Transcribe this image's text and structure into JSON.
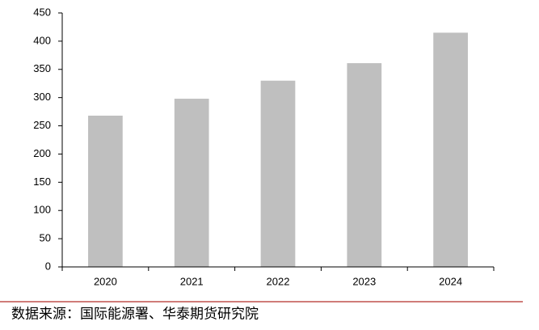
{
  "chart_data": {
    "type": "bar",
    "categories": [
      "2020",
      "2021",
      "2022",
      "2023",
      "2024"
    ],
    "values": [
      268,
      298,
      330,
      361,
      415
    ],
    "color": "#bfbfbf",
    "ylim": [
      0,
      450
    ],
    "yticks": [
      0,
      50,
      100,
      150,
      200,
      250,
      300,
      350,
      400,
      450
    ],
    "grid": false,
    "source": "数据来源：国际能源署、华泰期货研究院"
  }
}
